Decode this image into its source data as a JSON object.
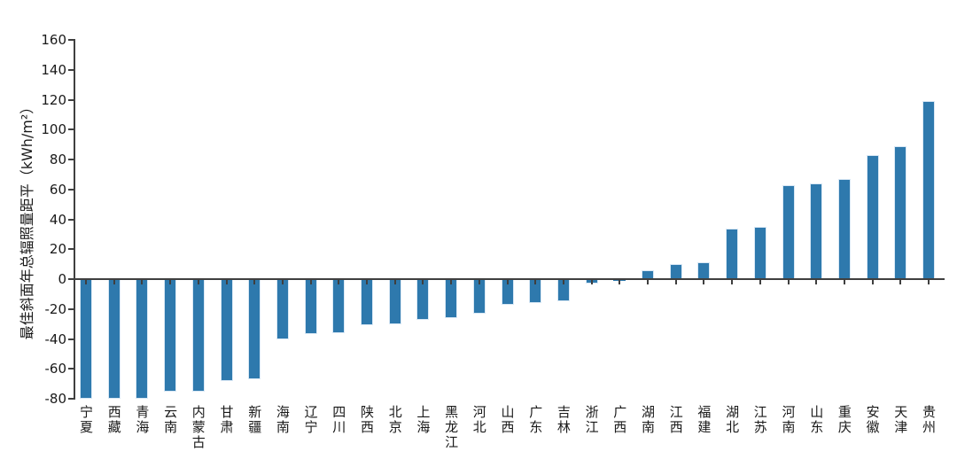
{
  "figure": {
    "background": "#ffffff"
  },
  "chart_data": {
    "type": "bar",
    "title": "",
    "xlabel": "",
    "ylabel": "最佳斜面年总辐照量距平（kWh/m²）",
    "categories": [
      "宁夏",
      "西藏",
      "青海",
      "云南",
      "内蒙古",
      "甘肃",
      "新疆",
      "海南",
      "辽宁",
      "四川",
      "陕西",
      "北京",
      "上海",
      "黑龙江",
      "河北",
      "山西",
      "广东",
      "吉林",
      "浙江",
      "广西",
      "湖南",
      "江西",
      "福建",
      "湖北",
      "江苏",
      "河南",
      "山东",
      "重庆",
      "安徽",
      "天津",
      "贵州"
    ],
    "values": [
      -80,
      -80,
      -80,
      -75,
      -75,
      -68,
      -67,
      -40,
      -37,
      -36,
      -31,
      -30,
      -27,
      -26,
      -23,
      -17,
      -16,
      -15,
      -3,
      -1,
      6,
      10,
      11,
      34,
      35,
      63,
      64,
      67,
      83,
      89,
      119
    ],
    "ylim": [
      -80,
      160
    ],
    "yticks": [
      160,
      140,
      120,
      100,
      80,
      60,
      40,
      20,
      0,
      -20,
      -40,
      -60,
      -80
    ],
    "ytick_step": 20,
    "grid": false,
    "legend_position": "none",
    "bar_color": "#2e79ad",
    "bar_edge_color": "#d9e8f5",
    "axis_color": "#3f3f3f",
    "text_color": "#1a1a1a"
  }
}
